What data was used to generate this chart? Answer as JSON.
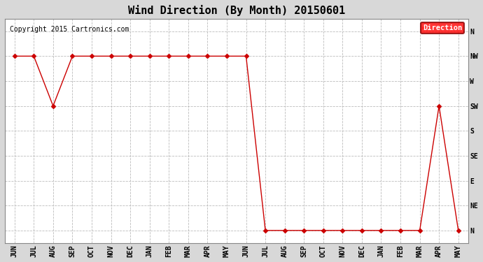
{
  "title": "Wind Direction (By Month) 20150601",
  "copyright": "Copyright 2015 Cartronics.com",
  "legend_label": "Direction",
  "legend_bg": "#ff0000",
  "legend_text_color": "#ffffff",
  "y_labels": [
    "N",
    "NW",
    "W",
    "SW",
    "S",
    "SE",
    "E",
    "NE",
    "N"
  ],
  "y_values": [
    8,
    7,
    6,
    5,
    4,
    3,
    2,
    1,
    0
  ],
  "x_labels": [
    "JUN",
    "JUL",
    "AUG",
    "SEP",
    "OCT",
    "NOV",
    "DEC",
    "JAN",
    "FEB",
    "MAR",
    "APR",
    "MAY",
    "JUN",
    "JUL",
    "AUG",
    "SEP",
    "OCT",
    "NOV",
    "DEC",
    "JAN",
    "FEB",
    "MAR",
    "APR",
    "MAY"
  ],
  "data_x": [
    0,
    1,
    2,
    3,
    4,
    5,
    6,
    7,
    8,
    9,
    10,
    11,
    12,
    13,
    14,
    15,
    16,
    17,
    18,
    19,
    20,
    21,
    22,
    23
  ],
  "data_y": [
    7,
    7,
    5,
    7,
    7,
    7,
    7,
    7,
    7,
    7,
    7,
    7,
    7,
    0,
    0,
    0,
    0,
    0,
    0,
    0,
    0,
    0,
    5,
    0
  ],
  "line_color": "#cc0000",
  "marker": "D",
  "marker_size": 3,
  "bg_color": "#d8d8d8",
  "plot_bg": "#ffffff",
  "grid_color": "#bbbbbb",
  "title_fontsize": 11,
  "tick_fontsize": 7,
  "ylim": [
    -0.5,
    8.5
  ],
  "copyright_fontsize": 7
}
